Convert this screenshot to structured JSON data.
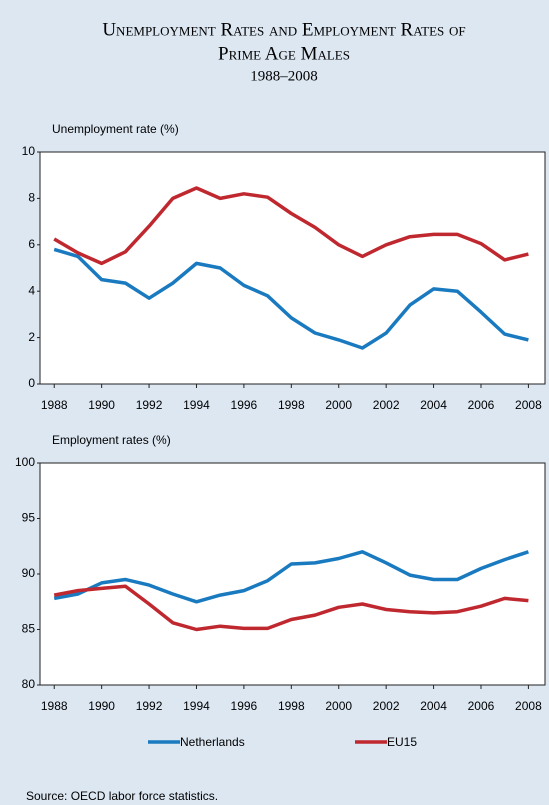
{
  "title": "Unemployment Rates and Employment Rates of",
  "title2": "Prime Age Males",
  "subtitle": "1988–2008",
  "source": "Source: OECD labor force statistics.",
  "chart_data": [
    {
      "type": "line",
      "ylabel": "Unemployment rate (%)",
      "x": [
        1988,
        1989,
        1990,
        1991,
        1992,
        1993,
        1994,
        1995,
        1996,
        1997,
        1998,
        1999,
        2000,
        2001,
        2002,
        2003,
        2004,
        2005,
        2006,
        2007,
        2008
      ],
      "series": [
        {
          "name": "Netherlands",
          "color": "#1a7ac0",
          "values": [
            5.8,
            5.5,
            4.5,
            4.35,
            3.7,
            4.35,
            5.2,
            5.0,
            4.25,
            3.8,
            2.85,
            2.2,
            1.9,
            1.55,
            2.2,
            3.4,
            4.1,
            4.0,
            3.1,
            2.15,
            1.9
          ]
        },
        {
          "name": "EU15",
          "color": "#c0282f",
          "values": [
            6.25,
            5.65,
            5.2,
            5.7,
            6.8,
            8.0,
            8.45,
            8.0,
            8.2,
            8.05,
            7.35,
            6.75,
            6.0,
            5.5,
            6.0,
            6.35,
            6.45,
            6.45,
            6.05,
            5.35,
            5.6
          ]
        }
      ],
      "xlim": [
        1987.4,
        2008.7
      ],
      "xticks": [
        1988,
        1990,
        1992,
        1994,
        1996,
        1998,
        2000,
        2002,
        2004,
        2006,
        2008
      ],
      "ylim": [
        0,
        10
      ],
      "yticks": [
        0,
        2,
        4,
        6,
        8,
        10
      ]
    },
    {
      "type": "line",
      "ylabel": "Employment rates (%)",
      "x": [
        1988,
        1989,
        1990,
        1991,
        1992,
        1993,
        1994,
        1995,
        1996,
        1997,
        1998,
        1999,
        2000,
        2001,
        2002,
        2003,
        2004,
        2005,
        2006,
        2007,
        2008
      ],
      "series": [
        {
          "name": "Netherlands",
          "color": "#1a7ac0",
          "values": [
            87.8,
            88.2,
            89.2,
            89.5,
            89.0,
            88.2,
            87.5,
            88.1,
            88.5,
            89.4,
            90.9,
            91.0,
            91.4,
            92.0,
            91.0,
            89.9,
            89.5,
            89.5,
            90.5,
            91.3,
            92.0
          ]
        },
        {
          "name": "EU15",
          "color": "#c0282f",
          "values": [
            88.1,
            88.5,
            88.7,
            88.9,
            87.3,
            85.6,
            85.0,
            85.3,
            85.1,
            85.1,
            85.9,
            86.3,
            87.0,
            87.3,
            86.8,
            86.6,
            86.5,
            86.6,
            87.1,
            87.8,
            87.6
          ]
        }
      ],
      "xlim": [
        1987.4,
        2008.7
      ],
      "xticks": [
        1988,
        1990,
        1992,
        1994,
        1996,
        1998,
        2000,
        2002,
        2004,
        2006,
        2008
      ],
      "ylim": [
        80,
        100
      ],
      "yticks": [
        80,
        85,
        90,
        95,
        100
      ]
    }
  ]
}
